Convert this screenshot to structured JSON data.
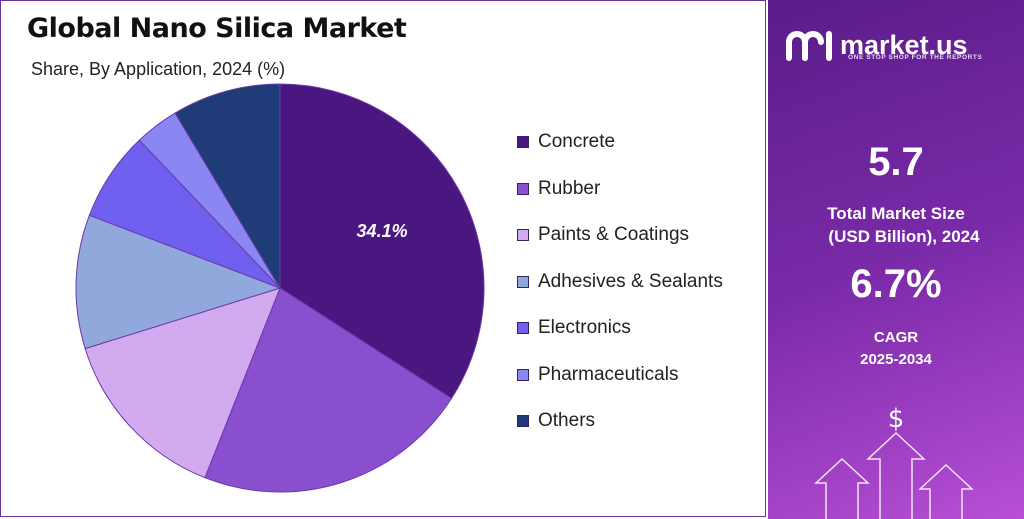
{
  "title": "Global Nano Silica Market",
  "subtitle": "Share, By Application, 2024 (%)",
  "chart_data": {
    "type": "pie",
    "title": "Global Nano Silica Market",
    "subtitle": "Share, By Application, 2024 (%)",
    "categories": [
      "Concrete",
      "Rubber",
      "Paints & Coatings",
      "Adhesives & Sealants",
      "Electronics",
      "Pharmaceuticals",
      "Others"
    ],
    "values": [
      34.1,
      21.9,
      14.2,
      10.6,
      7.1,
      3.5,
      8.6
    ],
    "colors": [
      "#4a1680",
      "#8a4fcf",
      "#d2aaf0",
      "#90a8dc",
      "#7060f0",
      "#8a86f2",
      "#1f3c78"
    ],
    "data_labels": [
      {
        "category": "Concrete",
        "text": "34.1%"
      }
    ],
    "legend_position": "right"
  },
  "brand": {
    "name": "market.us",
    "tagline": "ONE STOP SHOP FOR THE REPORTS"
  },
  "stats": {
    "market_size_value": "5.7",
    "market_size_label_1": "Total Market Size",
    "market_size_label_2": "(USD Billion), 2024",
    "cagr_value": "6.7%",
    "cagr_label_1": "CAGR",
    "cagr_label_2": "2025-2034",
    "currency_symbol": "$"
  }
}
